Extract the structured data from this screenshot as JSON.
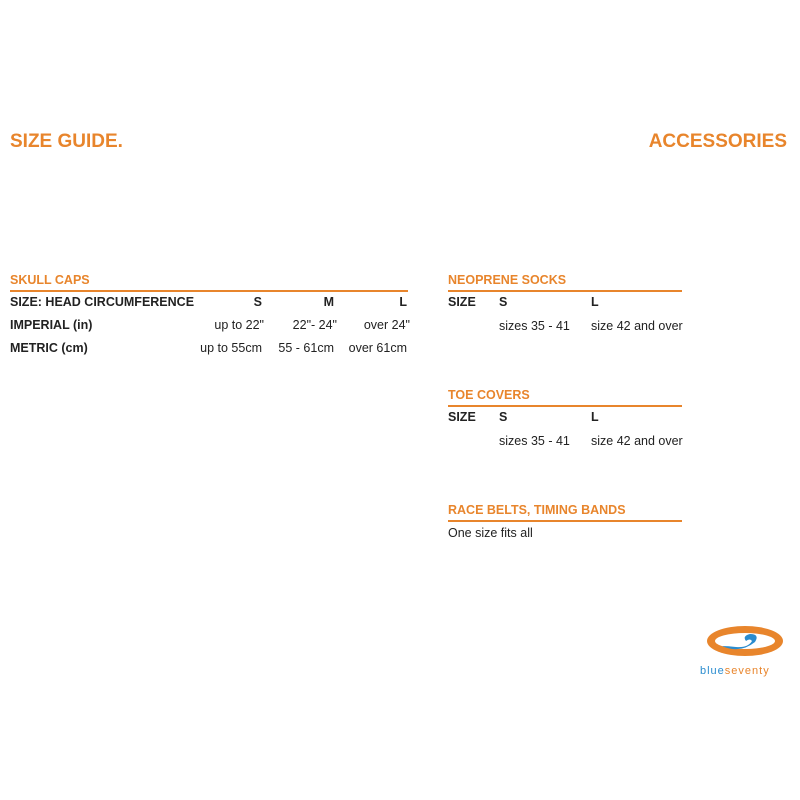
{
  "titles": {
    "left": "SIZE GUIDE.",
    "right": "ACCESSORIES"
  },
  "skull_caps": {
    "title": "SKULL CAPS",
    "header": [
      "SIZE: HEAD CIRCUMFERENCE",
      "S",
      "M",
      "L"
    ],
    "rows": [
      [
        "IMPERIAL (in)",
        "up to 22\"",
        "22\"- 24\"",
        "over 24\""
      ],
      [
        "METRIC (cm)",
        "up to 55cm",
        "55 - 61cm",
        "over 61cm"
      ]
    ]
  },
  "neoprene_socks": {
    "title": "NEOPRENE SOCKS",
    "header": [
      "SIZE",
      "S",
      "L"
    ],
    "row": [
      "sizes 35 - 41",
      "size 42 and over"
    ]
  },
  "toe_covers": {
    "title": "TOE COVERS",
    "header": [
      "SIZE",
      "S",
      "L"
    ],
    "row": [
      "sizes 35 - 41",
      "size 42 and over"
    ]
  },
  "race_belts": {
    "title": "RACE BELTS, TIMING BANDS",
    "text": "One size fits all"
  },
  "logo": {
    "text_blue": "blue",
    "text_orange": "seventy",
    "colors": {
      "blue": "#2a8ccf",
      "orange": "#e8852c"
    }
  }
}
